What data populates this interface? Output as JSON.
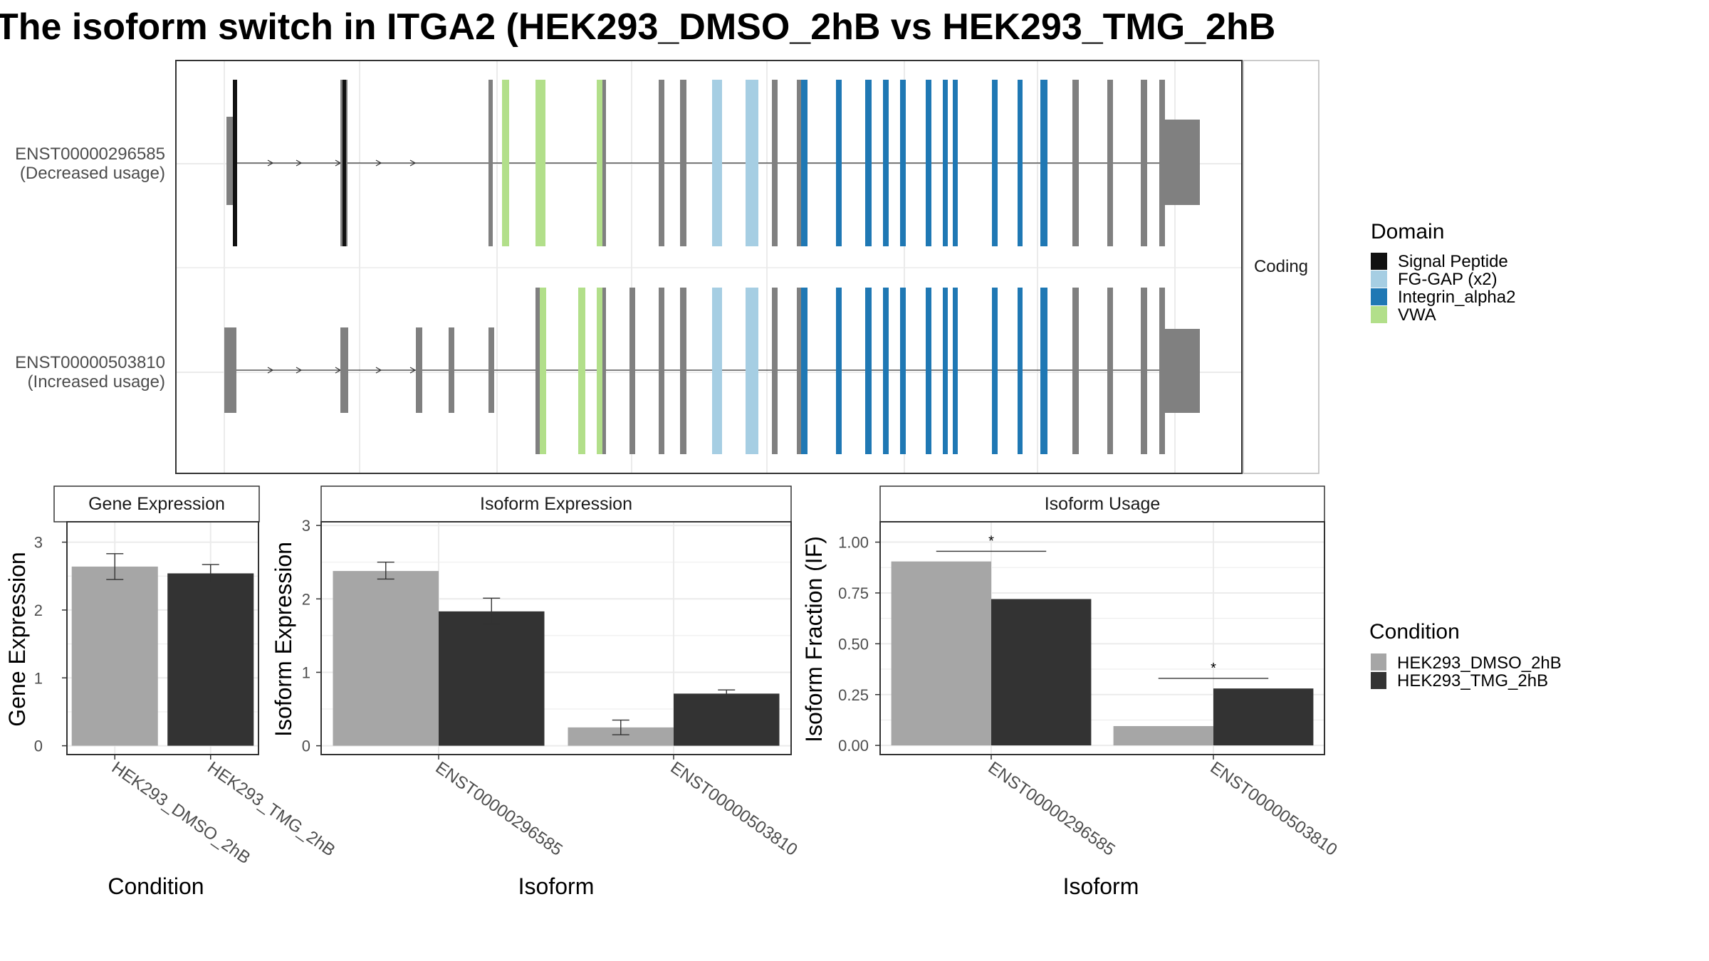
{
  "title": "The isoform switch in ITGA2 (HEK293_DMSO_2hB vs HEK293_TMG_2hB",
  "colors": {
    "DMSO": "#a6a6a6",
    "TMG": "#333333",
    "Signal Peptide": "#111111",
    "FG-GAP (x2)": "#a6cee3",
    "Integrin_alpha2": "#1f78b4",
    "VWA": "#b2df8a",
    "exon": "#808080",
    "grid": "#ebebeb"
  },
  "structure": {
    "strip_label": "Coding",
    "isoforms": [
      {
        "id": "ENST00000296585",
        "status": "(Decreased usage)"
      },
      {
        "id": "ENST00000503810",
        "status": "(Increased usage)"
      }
    ],
    "domain_legend_title": "Domain",
    "domains": [
      "Signal Peptide",
      "FG-GAP (x2)",
      "Integrin_alpha2",
      "VWA"
    ]
  },
  "condition_legend": {
    "title": "Condition",
    "items": [
      "HEK293_DMSO_2hB",
      "HEK293_TMG_2hB"
    ]
  },
  "chart_data": [
    {
      "type": "bar",
      "title": "Gene Expression",
      "xlabel": "Condition",
      "ylabel": "Gene Expression",
      "categories": [
        "HEK293_DMSO_2hB",
        "HEK293_TMG_2hB"
      ],
      "values": [
        2.64,
        2.54
      ],
      "error_low": [
        2.45,
        2.41
      ],
      "error_high": [
        2.83,
        2.67
      ],
      "ylim": [
        -0.13,
        3.3
      ],
      "yticks": [
        0,
        1,
        2,
        3
      ]
    },
    {
      "type": "bar",
      "title": "Isoform Expression",
      "xlabel": "Isoform",
      "ylabel": "Isoform Expression",
      "categories": [
        "ENST00000296585",
        "ENST00000503810"
      ],
      "series": [
        {
          "name": "HEK293_DMSO_2hB",
          "values": [
            2.38,
            0.25
          ],
          "error_low": [
            2.27,
            0.15
          ],
          "error_high": [
            2.5,
            0.35
          ]
        },
        {
          "name": "HEK293_TMG_2hB",
          "values": [
            1.83,
            0.71
          ],
          "error_low": [
            1.66,
            0.66
          ],
          "error_high": [
            2.01,
            0.76
          ]
        }
      ],
      "ylim": [
        -0.12,
        3.05
      ],
      "yticks": [
        0,
        1,
        2,
        3
      ]
    },
    {
      "type": "bar",
      "title": "Isoform Usage",
      "xlabel": "Isoform",
      "ylabel": "Isoform Fraction (IF)",
      "categories": [
        "ENST00000296585",
        "ENST00000503810"
      ],
      "series": [
        {
          "name": "HEK293_DMSO_2hB",
          "values": [
            0.905,
            0.095
          ]
        },
        {
          "name": "HEK293_TMG_2hB",
          "values": [
            0.72,
            0.28
          ]
        }
      ],
      "significance": [
        "*",
        "*"
      ],
      "ylim": [
        -0.045,
        1.1
      ],
      "yticks": [
        0,
        0.25,
        0.5,
        0.75,
        1.0
      ],
      "ytick_labels": [
        "0.00",
        "0.25",
        "0.50",
        "0.75",
        "1.00"
      ]
    }
  ]
}
